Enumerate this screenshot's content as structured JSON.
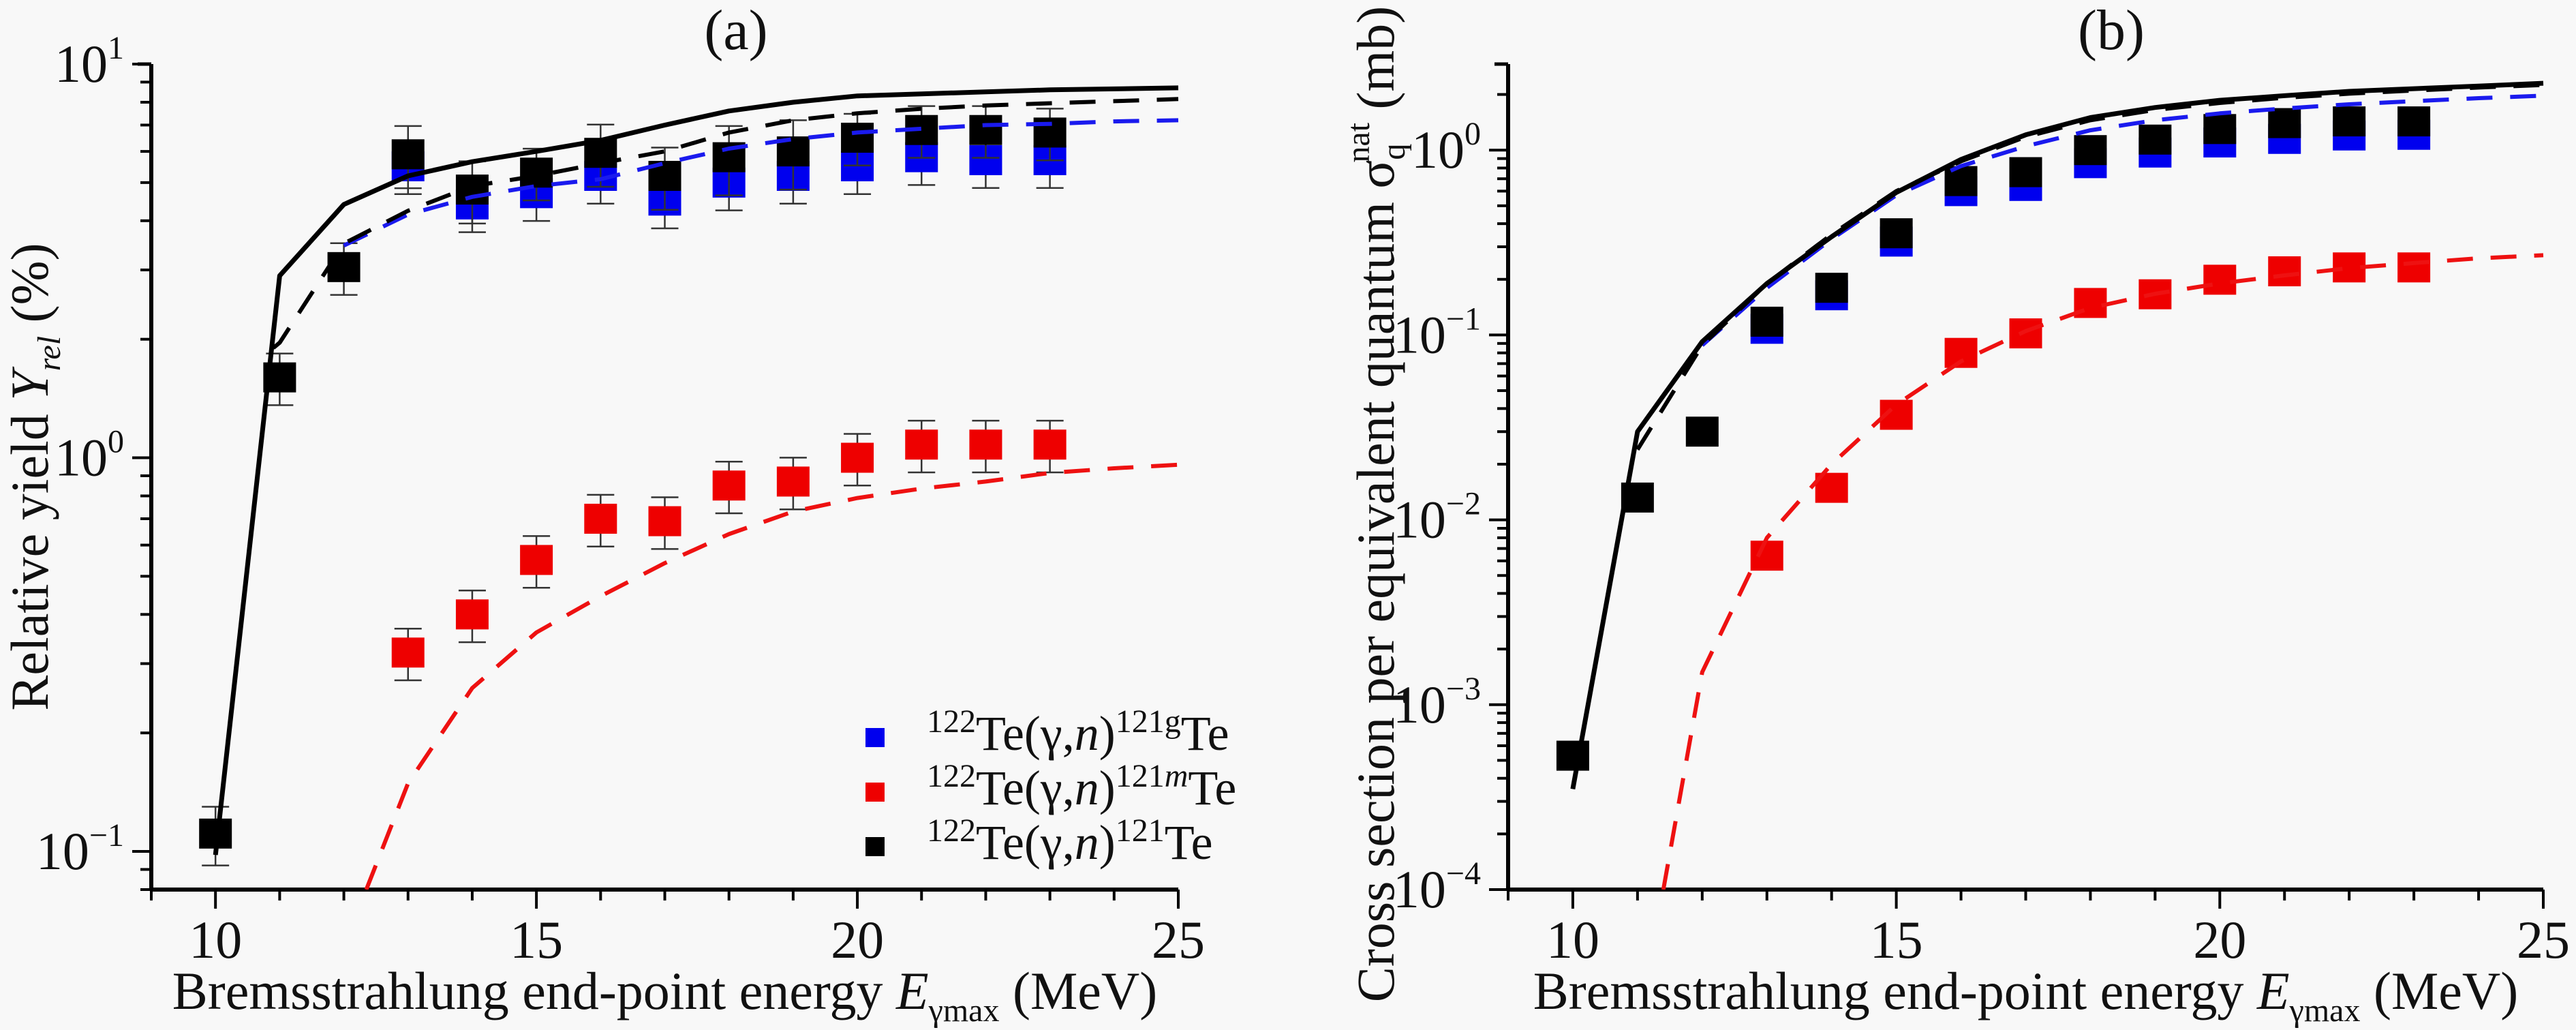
{
  "chart_data": [
    {
      "id": "a",
      "type": "scatter",
      "title": "(a)",
      "xlabel": "Bremsstrahlung end-point energy E_γmax (MeV)",
      "xlabel_parts": {
        "main": "Bremsstrahlung end-point energy ",
        "var": "E",
        "sub": "γmax",
        "unit": " (MeV)"
      },
      "ylabel": "Relative yield Y_rel (%)",
      "ylabel_parts": {
        "main": "Relative yield ",
        "var": "Y",
        "sub": "rel",
        "unit": " (%)"
      },
      "xscale": "linear",
      "yscale": "log",
      "xlim": [
        9,
        25
      ],
      "ylim": [
        0.08,
        10
      ],
      "xticks": [
        10,
        15,
        20,
        25
      ],
      "xtick_labels": [
        "10",
        "15",
        "20",
        "25"
      ],
      "yticks": [
        0.1,
        1,
        10
      ],
      "ytick_labels": [
        {
          "base": "10",
          "exp": "−1"
        },
        {
          "base": "10",
          "exp": "0"
        },
        {
          "base": "10",
          "exp": "1"
        }
      ],
      "grid": false,
      "legend": {
        "placement": "bottom-right",
        "entries": [
          {
            "series": "ground",
            "pre": "122",
            "mid": "Te(γ,",
            "n": "n",
            "post": ")",
            "sup": "121g",
            "supItalic": false,
            "end": "Te"
          },
          {
            "series": "meta",
            "pre": "122",
            "mid": "Te(γ,",
            "n": "n",
            "post": ")",
            "sup": "121",
            "supItalicPart": "m",
            "end": "Te"
          },
          {
            "series": "total",
            "pre": "122",
            "mid": "Te(γ,",
            "n": "n",
            "post": ")",
            "sup": "121",
            "end": "Te"
          }
        ]
      },
      "series": [
        {
          "name": "122Te(γ,n)121gTe",
          "key": "ground",
          "kind": "points",
          "color": "#0000ee",
          "x": [
            13,
            14,
            15,
            16,
            17,
            18,
            19,
            20,
            21,
            22,
            23
          ],
          "y": [
            5.5,
            4.4,
            4.7,
            5.2,
            4.5,
            5.0,
            5.2,
            5.5,
            5.8,
            5.7,
            5.7
          ],
          "yerr_rel": [
            0.15,
            0.15,
            0.15,
            0.15,
            0.15,
            0.15,
            0.15,
            0.15,
            0.15,
            0.15,
            0.15
          ]
        },
        {
          "name": "122Te(γ,n)121mTe",
          "key": "meta",
          "kind": "points",
          "color": "#ee0000",
          "x": [
            13,
            14,
            15,
            16,
            17,
            18,
            19,
            20,
            21,
            22,
            23
          ],
          "y": [
            0.32,
            0.4,
            0.55,
            0.7,
            0.69,
            0.85,
            0.87,
            1.0,
            1.08,
            1.08,
            1.08
          ],
          "yerr_rel": [
            0.15,
            0.15,
            0.15,
            0.15,
            0.15,
            0.15,
            0.15,
            0.15,
            0.15,
            0.15,
            0.15
          ]
        },
        {
          "name": "122Te(γ,n)121Te",
          "key": "total",
          "kind": "points",
          "color": "#000000",
          "x": [
            10,
            11,
            12,
            13,
            14,
            15,
            16,
            17,
            18,
            19,
            20,
            21,
            22,
            23
          ],
          "y": [
            0.111,
            1.6,
            3.05,
            5.9,
            4.8,
            5.3,
            5.95,
            5.2,
            5.8,
            6.0,
            6.5,
            6.8,
            6.8,
            6.7
          ],
          "yerr_rel": [
            0.17,
            0.15,
            0.15,
            0.18,
            0.18,
            0.15,
            0.18,
            0.18,
            0.2,
            0.2,
            0.15,
            0.15,
            0.15,
            0.15
          ]
        },
        {
          "name": "total theory (solid)",
          "key": "total-solid",
          "kind": "line",
          "style": "solid",
          "color": "#000000",
          "x": [
            10,
            11,
            12,
            13,
            14,
            15,
            16,
            17,
            18,
            19,
            20,
            21,
            22,
            23,
            24,
            25
          ],
          "y": [
            0.098,
            2.9,
            4.4,
            5.2,
            5.65,
            6.0,
            6.4,
            7.0,
            7.6,
            8.0,
            8.3,
            8.4,
            8.5,
            8.6,
            8.65,
            8.7
          ]
        },
        {
          "name": "total theory (dashed)",
          "key": "total-dashed",
          "kind": "line",
          "style": "dashed",
          "color": "#000000",
          "x": [
            10.9,
            11,
            12,
            13,
            14,
            15,
            16,
            17,
            18,
            19,
            20,
            21,
            22,
            23,
            24,
            25
          ],
          "y": [
            1.9,
            1.96,
            3.5,
            4.24,
            4.9,
            5.2,
            5.6,
            6.0,
            6.7,
            7.2,
            7.5,
            7.7,
            7.85,
            7.95,
            8.05,
            8.15
          ]
        },
        {
          "name": "ground theory (dashed)",
          "key": "ground-dashed",
          "kind": "line",
          "style": "dashed",
          "color": "#1a1aee",
          "x": [
            12,
            13,
            14,
            15,
            16,
            17,
            18,
            19,
            20,
            21,
            22,
            23,
            24,
            25
          ],
          "y": [
            3.46,
            4.15,
            4.6,
            4.9,
            5.1,
            5.6,
            6.1,
            6.45,
            6.7,
            6.85,
            7.0,
            7.05,
            7.15,
            7.2
          ]
        },
        {
          "name": "meta theory (dashed)",
          "key": "meta-dashed",
          "kind": "line",
          "style": "dashed",
          "color": "#ee1111",
          "x": [
            12.35,
            13,
            14,
            15,
            16,
            17,
            18,
            19,
            20,
            21,
            22,
            23,
            24,
            25
          ],
          "y": [
            0.08,
            0.149,
            0.26,
            0.36,
            0.445,
            0.54,
            0.64,
            0.73,
            0.79,
            0.835,
            0.87,
            0.915,
            0.94,
            0.96
          ]
        }
      ]
    },
    {
      "id": "b",
      "type": "scatter",
      "title": "(b)",
      "xlabel": "Bremsstrahlung end-point energy E_γmax (MeV)",
      "xlabel_parts": {
        "main": "Bremsstrahlung end-point energy ",
        "var": "E",
        "sub": "γmax",
        "unit": " (MeV)"
      },
      "ylabel": "Cross section per equivalent quantum σ_q^nat (mb)",
      "ylabel_parts": {
        "main": "Cross section per equivalent quantum σ",
        "sub": "q",
        "sup": "nat",
        "unit": " (mb)"
      },
      "xscale": "linear",
      "yscale": "log",
      "xlim": [
        9,
        25
      ],
      "ylim": [
        0.0001,
        2.92
      ],
      "xticks": [
        10,
        15,
        20,
        25
      ],
      "xtick_labels": [
        "10",
        "15",
        "20",
        "25"
      ],
      "yticks": [
        0.0001,
        0.001,
        0.01,
        0.1,
        1
      ],
      "ytick_labels": [
        {
          "base": "10",
          "exp": "−4"
        },
        {
          "base": "10",
          "exp": "−3"
        },
        {
          "base": "10",
          "exp": "−2"
        },
        {
          "base": "10",
          "exp": "−1"
        },
        {
          "base": "10",
          "exp": "0"
        }
      ],
      "grid": false,
      "series": [
        {
          "name": "122Te(γ,n)121gTe",
          "key": "ground",
          "kind": "points",
          "color": "#0000ee",
          "x": [
            13,
            14,
            15,
            16,
            17,
            18,
            19,
            20,
            21,
            22,
            23
          ],
          "y": [
            0.108,
            0.164,
            0.32,
            0.6,
            0.64,
            0.85,
            0.97,
            1.1,
            1.15,
            1.2,
            1.21
          ],
          "yerr_rel": [
            0.1,
            0.1,
            0.1,
            0.1,
            0.1,
            0.1,
            0.1,
            0.1,
            0.1,
            0.1,
            0.1
          ]
        },
        {
          "name": "122Te(γ,n)121mTe",
          "key": "meta",
          "kind": "points",
          "color": "#ee0000",
          "x": [
            13,
            14,
            15,
            16,
            17,
            18,
            19,
            20,
            21,
            22,
            23
          ],
          "y": [
            0.0064,
            0.0149,
            0.037,
            0.08,
            0.102,
            0.149,
            0.166,
            0.199,
            0.221,
            0.232,
            0.232
          ],
          "yerr_rel": [
            0.06,
            0.06,
            0.06,
            0.06,
            0.06,
            0.06,
            0.06,
            0.06,
            0.06,
            0.06,
            0.06
          ]
        },
        {
          "name": "122Te(γ,n)121Te",
          "key": "total",
          "kind": "points",
          "color": "#000000",
          "x": [
            10,
            11,
            12,
            13,
            14,
            15,
            16,
            17,
            18,
            19,
            20,
            21,
            22,
            23
          ],
          "y": [
            0.00053,
            0.0132,
            0.03,
            0.118,
            0.18,
            0.355,
            0.68,
            0.76,
            1.0,
            1.14,
            1.3,
            1.4,
            1.43,
            1.43
          ],
          "yerr_rel": [
            0.12,
            0.06,
            0.06,
            0.1,
            0.1,
            0.1,
            0.1,
            0.1,
            0.1,
            0.1,
            0.1,
            0.1,
            0.1,
            0.1
          ]
        },
        {
          "name": "total theory (solid)",
          "key": "total-solid",
          "kind": "line",
          "style": "solid",
          "color": "#000000",
          "x": [
            10,
            11,
            12,
            13,
            14,
            15,
            16,
            17,
            18,
            19,
            20,
            21,
            22,
            23,
            24,
            25
          ],
          "y": [
            0.00035,
            0.03,
            0.092,
            0.19,
            0.34,
            0.59,
            0.89,
            1.21,
            1.5,
            1.7,
            1.86,
            1.97,
            2.08,
            2.15,
            2.22,
            2.3
          ]
        },
        {
          "name": "total theory (dashed)",
          "key": "total-dashed",
          "kind": "line",
          "style": "dashed",
          "color": "#000000",
          "x": [
            11,
            12,
            13,
            14,
            15,
            16,
            17,
            18,
            19,
            20,
            21,
            22,
            23,
            24,
            25
          ],
          "y": [
            0.024,
            0.088,
            0.19,
            0.35,
            0.6,
            0.87,
            1.18,
            1.45,
            1.65,
            1.8,
            1.92,
            2.02,
            2.1,
            2.18,
            2.25
          ]
        },
        {
          "name": "ground theory (dashed)",
          "key": "ground-dashed",
          "kind": "line",
          "style": "dashed",
          "color": "#1a1aee",
          "x": [
            12,
            13,
            14,
            15,
            16,
            17,
            18,
            19,
            20,
            21,
            22,
            23,
            24,
            25
          ],
          "y": [
            0.088,
            0.18,
            0.33,
            0.57,
            0.82,
            1.05,
            1.28,
            1.45,
            1.58,
            1.68,
            1.77,
            1.84,
            1.91,
            1.97
          ]
        },
        {
          "name": "meta theory (dashed)",
          "key": "meta-dashed",
          "kind": "line",
          "style": "dashed",
          "color": "#ee1111",
          "x": [
            11.4,
            12,
            13,
            14,
            15,
            16,
            17,
            18,
            19,
            20,
            21,
            22,
            23,
            24,
            25
          ],
          "y": [
            0.0001,
            0.0015,
            0.008,
            0.02,
            0.042,
            0.072,
            0.105,
            0.14,
            0.167,
            0.19,
            0.21,
            0.23,
            0.245,
            0.26,
            0.27
          ]
        }
      ]
    }
  ]
}
